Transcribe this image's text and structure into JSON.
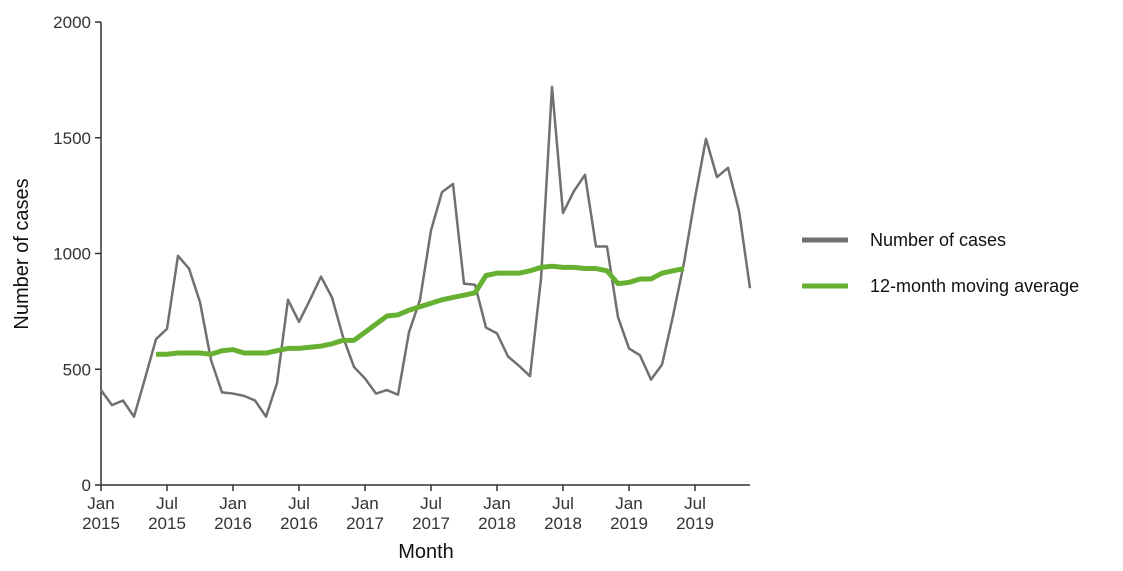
{
  "chart_data": {
    "type": "line",
    "x_label": "Month",
    "y_label": "Number of cases",
    "categories": [
      "Jan 2015",
      null,
      null,
      null,
      null,
      null,
      "Jul 2015",
      null,
      null,
      null,
      null,
      null,
      "Jan 2016",
      null,
      null,
      null,
      null,
      null,
      "Jul 2016",
      null,
      null,
      null,
      null,
      null,
      "Jan 2017",
      null,
      null,
      null,
      null,
      null,
      "Jul 2017",
      null,
      null,
      null,
      null,
      null,
      "Jan 2018",
      null,
      null,
      null,
      null,
      null,
      "Jul 2018",
      null,
      null,
      null,
      null,
      null,
      "Jan 2019",
      null,
      null,
      null,
      null,
      null,
      "Jul 2019",
      null,
      null,
      null,
      null,
      null
    ],
    "series": [
      {
        "name": "Number of cases",
        "color": "#707070",
        "values": [
          410,
          345,
          365,
          295,
          460,
          630,
          675,
          990,
          935,
          790,
          540,
          400,
          395,
          385,
          365,
          295,
          440,
          800,
          705,
          800,
          900,
          810,
          640,
          510,
          460,
          395,
          410,
          390,
          660,
          800,
          1100,
          1265,
          1300,
          870,
          865,
          680,
          655,
          555,
          515,
          470,
          890,
          1720,
          1175,
          1270,
          1340,
          1030,
          1030,
          725,
          590,
          560,
          455,
          520,
          730,
          960,
          1240,
          1495,
          1330,
          1370,
          1185,
          850
        ]
      },
      {
        "name": "12-month moving average",
        "color": "#66b032",
        "values": [
          null,
          null,
          null,
          null,
          null,
          565,
          565,
          570,
          570,
          570,
          565,
          580,
          585,
          570,
          570,
          570,
          580,
          590,
          590,
          595,
          600,
          610,
          625,
          625,
          660,
          695,
          730,
          735,
          755,
          770,
          785,
          800,
          810,
          820,
          830,
          905,
          915,
          915,
          915,
          925,
          940,
          945,
          940,
          940,
          935,
          935,
          925,
          870,
          875,
          890,
          890,
          915,
          925,
          935,
          null,
          null,
          null,
          null,
          null,
          null
        ]
      }
    ],
    "ylim": [
      0,
      2000
    ],
    "yticks": [
      0,
      500,
      1000,
      1500,
      2000
    ],
    "grid": false,
    "legend": "right"
  }
}
